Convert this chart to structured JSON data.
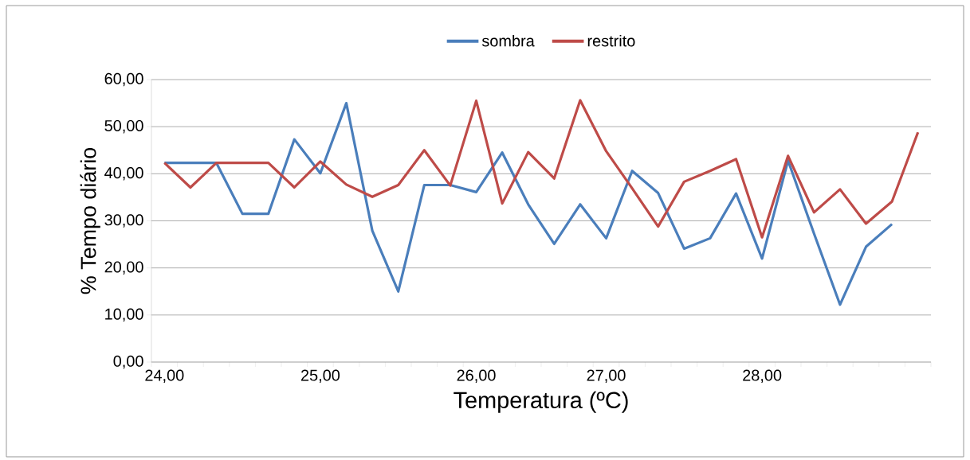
{
  "chart_data": {
    "type": "line",
    "xlabel": "Temperatura (ºC)",
    "ylabel": "% Tempo diário",
    "categories": [
      "24,00",
      null,
      null,
      null,
      null,
      null,
      "25,00",
      null,
      null,
      null,
      null,
      null,
      "26,00",
      null,
      null,
      null,
      null,
      "27,00",
      null,
      null,
      null,
      null,
      null,
      "28,00",
      null,
      null,
      null,
      null,
      null,
      null
    ],
    "series": [
      {
        "name": "sombra",
        "color": "#4a7ebb",
        "values": [
          42.3,
          42.3,
          42.3,
          31.5,
          31.5,
          47.3,
          40.1,
          55.0,
          27.9,
          15.0,
          37.6,
          37.6,
          36.1,
          44.5,
          33.5,
          25.1,
          33.5,
          26.3,
          40.6,
          35.9,
          24.1,
          26.3,
          35.8,
          22.0,
          42.8,
          27.3,
          12.2,
          24.5,
          29.3,
          null
        ]
      },
      {
        "name": "restrito",
        "color": "#be4b48",
        "values": [
          42.3,
          37.1,
          42.3,
          42.3,
          42.3,
          37.1,
          42.6,
          37.7,
          35.1,
          37.6,
          45.0,
          37.5,
          55.5,
          33.7,
          44.6,
          39.0,
          55.6,
          44.8,
          36.9,
          28.8,
          38.3,
          40.6,
          43.1,
          26.5,
          43.8,
          31.8,
          36.7,
          29.4,
          34.1,
          48.8
        ]
      }
    ],
    "ylim": [
      0,
      60
    ],
    "yticks": [
      {
        "value": 0,
        "label": "0,00"
      },
      {
        "value": 10,
        "label": "10,00"
      },
      {
        "value": 20,
        "label": "20,00"
      },
      {
        "value": 30,
        "label": "30,00"
      },
      {
        "value": 40,
        "label": "40,00"
      },
      {
        "value": 50,
        "label": "50,00"
      },
      {
        "value": 60,
        "label": "60,00"
      }
    ],
    "grid": "y",
    "legend": "top",
    "marker": "none",
    "line_style": "solid"
  }
}
